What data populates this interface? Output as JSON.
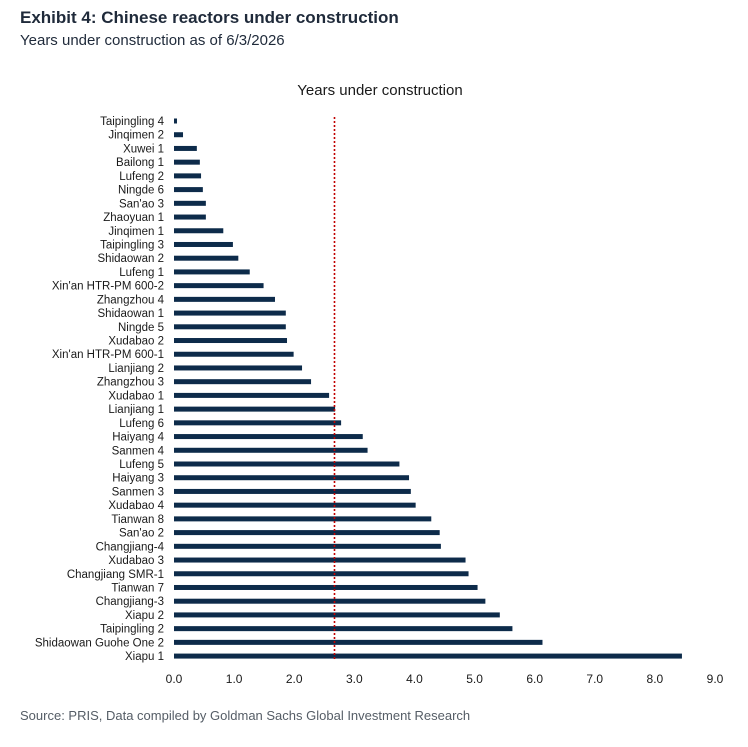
{
  "header": {
    "title": "Exhibit 4: Chinese reactors under construction",
    "subtitle": "Years under construction as of 6/3/2026"
  },
  "footer": {
    "source": "Source: PRIS, Data compiled by Goldman Sachs Global Investment Research"
  },
  "colors": {
    "bar": "#0d2b4a",
    "reference_line": "#c00000"
  },
  "chart_data": {
    "type": "bar",
    "orientation": "horizontal",
    "title": "Years under construction",
    "xlabel": "",
    "ylabel": "",
    "xlim": [
      0,
      9
    ],
    "xticks": [
      "0.0",
      "1.0",
      "2.0",
      "3.0",
      "4.0",
      "5.0",
      "6.0",
      "7.0",
      "8.0",
      "9.0"
    ],
    "grid": false,
    "reference_line": {
      "x": 2.67,
      "style": "dotted"
    },
    "categories": [
      "Taipingling 4",
      "Jinqimen 2",
      "Xuwei 1",
      "Bailong 1",
      "Lufeng 2",
      "Ningde 6",
      "San'ao 3",
      "Zhaoyuan 1",
      "Jinqimen 1",
      "Taipingling 3",
      "Shidaowan 2",
      "Lufeng 1",
      "Xin'an HTR-PM 600-2",
      "Zhangzhou 4",
      "Shidaowan 1",
      "Ningde 5",
      "Xudabao 2",
      "Xin'an HTR-PM 600-1",
      "Lianjiang 2",
      "Zhangzhou 3",
      "Xudabao 1",
      "Lianjiang 1",
      "Lufeng 6",
      "Haiyang 4",
      "Sanmen 4",
      "Lufeng 5",
      "Haiyang 3",
      "Sanmen 3",
      "Xudabao 4",
      "Tianwan 8",
      "San'ao 2",
      "Changjiang-4",
      "Xudabao 3",
      "Changjiang SMR-1",
      "Tianwan 7",
      "Changjiang-3",
      "Xiapu 2",
      "Taipingling 2",
      "Shidaowan Guohe One 2",
      "Xiapu 1"
    ],
    "values": [
      0.05,
      0.15,
      0.38,
      0.43,
      0.45,
      0.48,
      0.53,
      0.53,
      0.82,
      0.98,
      1.07,
      1.26,
      1.49,
      1.68,
      1.86,
      1.86,
      1.88,
      1.99,
      2.13,
      2.28,
      2.58,
      2.68,
      2.78,
      3.14,
      3.22,
      3.75,
      3.91,
      3.94,
      4.02,
      4.28,
      4.42,
      4.44,
      4.85,
      4.9,
      5.05,
      5.18,
      5.42,
      5.63,
      6.13,
      8.45
    ]
  }
}
